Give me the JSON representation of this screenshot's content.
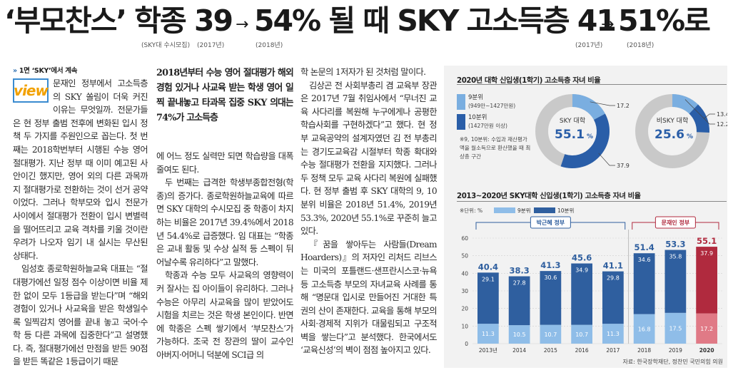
{
  "headline": {
    "part1": "‘부모찬스’ 학종 39",
    "arrow": "→",
    "part2": "54% 될 때 SKY 고소득층 41",
    "part3": "51%로",
    "sub1": "(SKY대 수시모집)",
    "sub2": "(2017년)",
    "sub3": "(2018년)",
    "sub4": "(2017년)",
    "sub5": "(2018년)"
  },
  "kicker": "1면 ‘SKY’에서 계속",
  "view_label": "view",
  "columns": {
    "col1": "문재인 정부에서 고소득층의 SKY 쏠림이 더욱 커진 이유는 무엇일까. 전문가들은 현 정부 출범 전후에 변화된 입시 정책 두 가지를 주원인으로 꼽는다. 첫 번째는 2018학번부터 시행된 수능 영어 절대평가. 지난 정부 때 이미 예고된 사안이긴 했지만, 영어 외의 다른 과목까지 절대평가로 전환하는 것이 선거 공약이었다. 그러나 학부모와 입시 전문가 사이에서 절대평가 전환이 입시 변별력을 떨어뜨리고 교육 격차를 키울 것이란 우려가 나오자 임기 내 실시는 무산된 상태다.",
    "col1b": "임성호 종로학원하늘교육 대표는 “절대평가에선 일정 점수 이상이면 비율 제한 없이 모두 1등급을 받는다”며 “해외 경험이 있거나 사교육을 받은 학생일수록 일찍감치 영어를 끝내 놓고 국어·수학 등 다른 과목에 집중한다”고 설명했다. 즉, 절대평가에선 만점을 받든 90점을 받든 똑같은 1등급이기 때문",
    "deck": "2018년부터 수능 영어 절대평가 해외 경험 있거나 사교육 받는 학생 영어 일찍 끝내놓고 타과목 집중 SKY 의대는 74%가 고소득층",
    "col2": "에 어느 정도 실력만 되면 학습량을 대폭 줄여도 된다.",
    "col2b": "두 번째는 급격한 학생부종합전형(학종)의 증가다. 종로학원하늘교육에 따르면 SKY 대학의 수시모집 중 학종이 차지하는 비율은 2017년 39.4%에서 2018년 54.4%로 급증했다. 임 대표는 “학종은 교내 활동 및 수상 실적 등 스펙이 뒤어날수록 유리하다”고 말했다.",
    "col2c": "학종과 수능 모두 사교육의 영향력이 커 잘사는 집 아이들이 유리하다. 그러나 수능은 아무리 사교육을 많이 받았어도 시험을 치르는 것은 학생 본인이다. 반면에 학종은 스펙 쌓기에서 ‘부모찬스’가 가능하다. 조국 전 장관의 딸이 교수인 아버지·어머니 덕분에 SCI급 의",
    "col3": "학 논문의 1저자가 된 것처럼 말이다.",
    "col3b": "김상곤 전 사회부총리 겸 교육부 장관은 2017년 7월 취임사에서 “무너진 교육 사다리를 복원해 누구에게나 공평한 학습사회를 구현하겠다”고 했다. 현 정부 교육공약의 설계자였던 김 전 부총리는 경기도교육감 시절부터 학종 확대와 수능 절대평가 전환을 지지했다. 그러나 두 정책 모두 교육 사다리 복원에 실패했다. 현 정부 출범 후 SKY 대학의 9, 10분위 비율은 2018년 51.4%, 2019년 53.3%, 2020년 55.1%로 꾸준히 늘고 있다.",
    "col3c": "『꿈을 쌓아두는 사람들(Dream Hoarders)』의 저자인 리처드 리브스는 미국의 포틀랜드·샌프란시스코·뉴욕 등 고소득층 부모의 자녀교육 사례를 통해 “명문대 입시로 만들어진 거대한 특권의 산이 존재한다. 교육을 통해 부모의 사회·경제적 지위가 대물림되고 구조적 벽을 쌓는다”고 분석했다. 한국에서도 ‘교육신성’의 벽이 점점 높아지고 있다."
  },
  "chart1": {
    "title": "2020년 대학 신입생(1학기) 고소득층 자녀 비율",
    "legend": [
      {
        "label": "9분위",
        "sub": "(949만~1427만원)",
        "color": "#7aaee0"
      },
      {
        "label": "10분위",
        "sub": "(1427만원 이상)",
        "color": "#2a5ea8"
      }
    ],
    "note": "※9, 10분위: 수입과 재산평가액을 월소득으로 환산했을 때 최상층 구간",
    "donuts": [
      {
        "name": "SKY 대학",
        "total": "55.1",
        "pct": "%",
        "d9": 17.2,
        "d10": 37.9,
        "d9_label": "17.2",
        "d10_label": "37.9"
      },
      {
        "name": "비SKY 대학",
        "total": "25.6",
        "pct": "%",
        "d9": 12.2,
        "d10": 13.4,
        "d9_label": "12.2",
        "d10_label": "13.4"
      }
    ]
  },
  "chart_data": {
    "type": "bar",
    "title": "2013~2020년 SKY대학 신입생(1학기) 고소득층 자녀 비율",
    "unit_label": "※단위: %",
    "legend": [
      "9분위",
      "10분위"
    ],
    "categories": [
      "2013년",
      "2014",
      "2015",
      "2016",
      "2017",
      "2018",
      "2019",
      "2020"
    ],
    "series": [
      {
        "name": "9분위",
        "values": [
          11.3,
          10.5,
          10.7,
          10.7,
          11.3,
          16.8,
          17.5,
          17.2
        ]
      },
      {
        "name": "10분위",
        "values": [
          29.1,
          27.8,
          30.6,
          34.9,
          29.8,
          34.6,
          35.8,
          37.9
        ]
      }
    ],
    "totals": [
      40.4,
      38.3,
      41.3,
      45.6,
      41.1,
      51.4,
      53.3,
      55.1
    ],
    "total_labels": [
      "40.4",
      "38.3",
      "41.3",
      "45.6",
      "41.1",
      "51.4",
      "53.3",
      "55.1"
    ],
    "ylim": [
      0,
      60
    ],
    "yticks": [
      0,
      10,
      20,
      30,
      40,
      50,
      60
    ],
    "periods": [
      {
        "label": "박근혜 정부",
        "from": 0,
        "to": 4
      },
      {
        "label": "문재인 정부",
        "from": 5,
        "to": 7
      }
    ],
    "colors": {
      "d9": "#8fbde8",
      "d10": "#2f5f9f",
      "d9_2020": "#e07a86",
      "d10_2020": "#b02a3e",
      "total": "#2f5f9f",
      "total_2020": "#b02a3e"
    }
  },
  "source": "자료: 한국장학재단, 정찬민 국민의힘 의원"
}
